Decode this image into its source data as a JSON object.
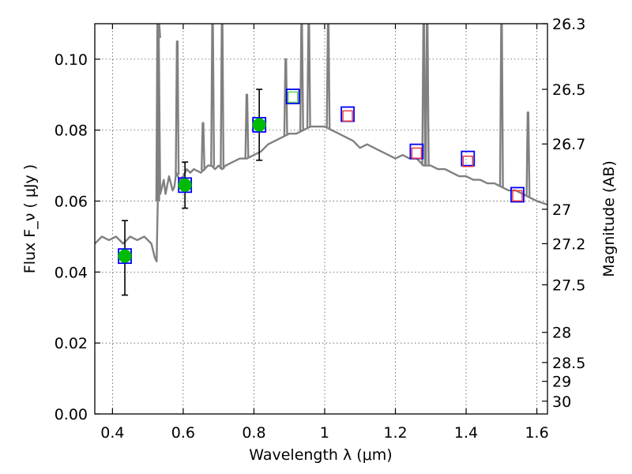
{
  "chart_data": {
    "type": "line",
    "xlabel": "Wavelength  λ (μm)",
    "ylabel": "Flux  F_ν  ( μJy )",
    "ylabel_right": "Magnitude (AB)",
    "xlim": [
      0.35,
      1.63
    ],
    "ylim": [
      0.0,
      0.11
    ],
    "grid": true,
    "x_ticks": [
      0.4,
      0.6,
      0.8,
      1.0,
      1.2,
      1.4,
      1.6
    ],
    "x_tick_labels": [
      "0.4",
      "0.6",
      "0.8",
      "1",
      "1.2",
      "1.4",
      "1.6"
    ],
    "y_ticks": [
      0.0,
      0.02,
      0.04,
      0.06,
      0.08,
      0.1
    ],
    "y_tick_labels": [
      "0.00",
      "0.02",
      "0.04",
      "0.06",
      "0.08",
      "0.10"
    ],
    "right_ticks": [
      {
        "label": "26.3",
        "flux": 0.11
      },
      {
        "label": "26.5",
        "flux": 0.0915
      },
      {
        "label": "26.7",
        "flux": 0.0761
      },
      {
        "label": "27",
        "flux": 0.0577
      },
      {
        "label": "27.2",
        "flux": 0.048
      },
      {
        "label": "27.5",
        "flux": 0.0364
      },
      {
        "label": "28",
        "flux": 0.023
      },
      {
        "label": "28.5",
        "flux": 0.0145
      },
      {
        "label": "29",
        "flux": 0.0092
      },
      {
        "label": "30",
        "flux": 0.0036
      }
    ],
    "series": [
      {
        "kind": "model-spectrum",
        "color": "#808080",
        "x": [
          0.35,
          0.37,
          0.39,
          0.41,
          0.43,
          0.45,
          0.47,
          0.49,
          0.51,
          0.52,
          0.525,
          0.528,
          0.531,
          0.535,
          0.54,
          0.545,
          0.55,
          0.56,
          0.57,
          0.575,
          0.58,
          0.59,
          0.6,
          0.61,
          0.62,
          0.63,
          0.65,
          0.66,
          0.67,
          0.68,
          0.69,
          0.7,
          0.71,
          0.72,
          0.74,
          0.76,
          0.78,
          0.8,
          0.82,
          0.84,
          0.86,
          0.88,
          0.9,
          0.92,
          0.94,
          0.96,
          0.98,
          1.0,
          1.02,
          1.04,
          1.06,
          1.08,
          1.1,
          1.12,
          1.14,
          1.16,
          1.18,
          1.2,
          1.22,
          1.24,
          1.26,
          1.28,
          1.3,
          1.32,
          1.34,
          1.36,
          1.38,
          1.4,
          1.42,
          1.44,
          1.46,
          1.48,
          1.5,
          1.52,
          1.54,
          1.56,
          1.58,
          1.6,
          1.63
        ],
        "y": [
          0.048,
          0.05,
          0.049,
          0.05,
          0.048,
          0.05,
          0.049,
          0.05,
          0.048,
          0.044,
          0.043,
          0.06,
          0.106,
          0.062,
          0.064,
          0.066,
          0.062,
          0.067,
          0.063,
          0.064,
          0.068,
          0.066,
          0.067,
          0.069,
          0.068,
          0.069,
          0.068,
          0.069,
          0.07,
          0.07,
          0.069,
          0.07,
          0.069,
          0.07,
          0.071,
          0.072,
          0.072,
          0.073,
          0.074,
          0.076,
          0.077,
          0.078,
          0.079,
          0.079,
          0.08,
          0.081,
          0.081,
          0.081,
          0.08,
          0.079,
          0.078,
          0.077,
          0.075,
          0.076,
          0.075,
          0.074,
          0.073,
          0.072,
          0.073,
          0.072,
          0.072,
          0.07,
          0.07,
          0.069,
          0.069,
          0.068,
          0.067,
          0.067,
          0.066,
          0.066,
          0.065,
          0.065,
          0.064,
          0.063,
          0.063,
          0.062,
          0.061,
          0.06,
          0.059
        ]
      },
      {
        "kind": "measured-flux",
        "color": "#00bb00",
        "x": [
          0.435,
          0.605,
          0.815
        ],
        "y": [
          0.0445,
          0.0645,
          0.0815
        ],
        "err_low": [
          0.0335,
          0.058,
          0.0715
        ],
        "err_high": [
          0.0545,
          0.071,
          0.0915
        ]
      },
      {
        "kind": "model-band-flux",
        "color": "#0000ff",
        "x": [
          0.435,
          0.605,
          0.815,
          0.91,
          1.065,
          1.26,
          1.405,
          1.545
        ],
        "y": [
          0.0445,
          0.0645,
          0.0815,
          0.0895,
          0.0845,
          0.074,
          0.072,
          0.0618
        ]
      },
      {
        "kind": "upper-limit",
        "color": "#55cc55",
        "x": [
          0.91
        ],
        "y": [
          0.0893
        ]
      },
      {
        "kind": "upper-limit",
        "color": "#ee3333",
        "x": [
          1.065,
          1.26,
          1.405,
          1.545
        ],
        "y": [
          0.084,
          0.0735,
          0.0712,
          0.0615
        ]
      }
    ],
    "emission_lines": [
      {
        "x": 0.528,
        "peak": 0.11
      },
      {
        "x": 0.531,
        "peak": 0.11
      },
      {
        "x": 0.583,
        "peak": 0.105
      },
      {
        "x": 0.656,
        "peak": 0.082
      },
      {
        "x": 0.683,
        "peak": 0.11
      },
      {
        "x": 0.71,
        "peak": 0.11
      },
      {
        "x": 0.78,
        "peak": 0.09
      },
      {
        "x": 0.89,
        "peak": 0.1
      },
      {
        "x": 0.935,
        "peak": 0.11
      },
      {
        "x": 0.955,
        "peak": 0.11
      },
      {
        "x": 1.01,
        "peak": 0.11
      },
      {
        "x": 1.28,
        "peak": 0.11
      },
      {
        "x": 1.29,
        "peak": 0.11
      },
      {
        "x": 1.5,
        "peak": 0.11
      },
      {
        "x": 1.575,
        "peak": 0.085
      }
    ]
  }
}
